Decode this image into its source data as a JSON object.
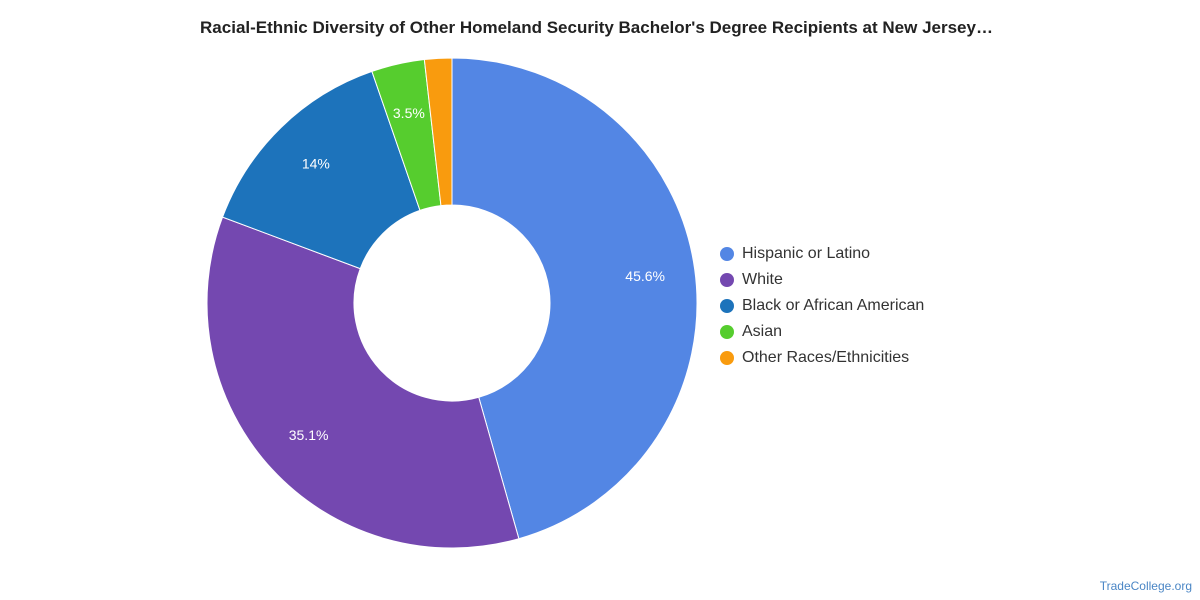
{
  "title": "Racial-Ethnic Diversity of Other Homeland Security Bachelor's Degree Recipients at New Jersey…",
  "source": "TradeCollege.org",
  "chart_data": {
    "type": "pie",
    "style": "donut",
    "title": "Racial-Ethnic Diversity of Other Homeland Security Bachelor's Degree Recipients at New Jersey…",
    "legend_position": "right",
    "slices": [
      {
        "name": "Hispanic or Latino",
        "value": 45.6,
        "label": "45.6%",
        "color": "#5386e4"
      },
      {
        "name": "White",
        "value": 35.1,
        "label": "35.1%",
        "color": "#7448b0"
      },
      {
        "name": "Black or African American",
        "value": 14.0,
        "label": "14%",
        "color": "#1d73bb"
      },
      {
        "name": "Asian",
        "value": 3.5,
        "label": "3.5%",
        "color": "#56cd2e"
      },
      {
        "name": "Other Races/Ethnicities",
        "value": 1.8,
        "label": "",
        "color": "#f99b0e"
      }
    ]
  }
}
